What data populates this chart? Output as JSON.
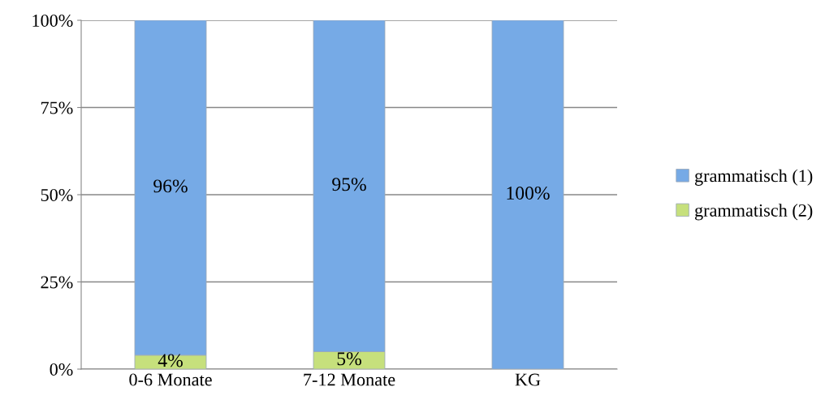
{
  "chart_data": {
    "type": "bar",
    "stacked": true,
    "categories": [
      "0-6 Monate",
      "7-12 Monate",
      "KG"
    ],
    "series": [
      {
        "name": "grammatisch (2)",
        "color": "#c6e07c",
        "values": [
          4,
          5,
          0
        ],
        "value_labels": [
          "4%",
          "5%",
          null
        ]
      },
      {
        "name": "grammatisch (1)",
        "color": "#76aae6",
        "values": [
          96,
          95,
          100
        ],
        "value_labels": [
          "96%",
          "95%",
          "100%"
        ]
      }
    ],
    "ylim": [
      0,
      100
    ],
    "yticks": [
      {
        "value": 0,
        "label": "0%"
      },
      {
        "value": 25,
        "label": "25%"
      },
      {
        "value": 50,
        "label": "50%"
      },
      {
        "value": 75,
        "label": "75%"
      },
      {
        "value": 100,
        "label": "100%"
      }
    ],
    "grid": "y",
    "legend": "right"
  }
}
